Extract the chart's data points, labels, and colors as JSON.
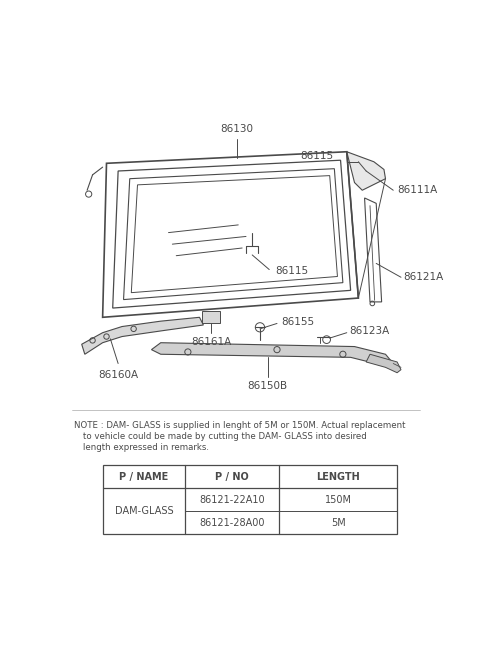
{
  "bg_color": "#ffffff",
  "line_color": "#4a4a4a",
  "text_color": "#4a4a4a",
  "fig_width": 4.8,
  "fig_height": 6.55,
  "note_text_line1": "NOTE : DAM- GLASS is supplied in lenght of 5M or 150M. Actual replacement",
  "note_text_line2": "to vehicle could be made by cutting the DAM- GLASS into desired",
  "note_text_line3": "length expressed in remarks.",
  "table_headers": [
    "P / NAME",
    "P / NO",
    "LENGTH"
  ],
  "table_rows": [
    [
      "DAM-GLASS",
      "86121-22A10",
      "150M"
    ],
    [
      "",
      "86121-28A00",
      "5M"
    ]
  ]
}
